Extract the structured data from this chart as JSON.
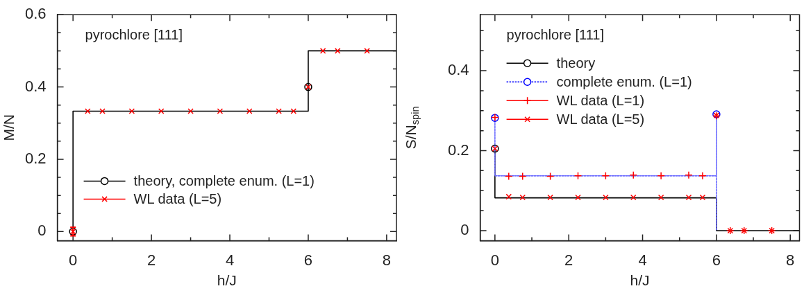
{
  "chart_data": [
    {
      "type": "line",
      "xlabel": "h/J",
      "ylabel": "M/N",
      "annotations": [
        "pyrochlore [111]"
      ],
      "legend": "bottom left",
      "xlim": [
        -0.4,
        8.25
      ],
      "ylim": [
        -0.025,
        0.6
      ],
      "xticks": [
        0,
        {
          "value": 1,
          "label": null
        },
        2,
        {
          "value": 3,
          "label": null
        },
        4,
        {
          "value": 5,
          "label": null
        },
        6,
        {
          "value": 7,
          "label": null
        },
        8
      ],
      "yticks": [
        0,
        {
          "value": 0.05,
          "label": null
        },
        {
          "value": 0.1,
          "label": null
        },
        {
          "value": 0.15,
          "label": null
        },
        0.2,
        {
          "value": 0.25,
          "label": null
        },
        {
          "value": 0.3,
          "label": null
        },
        {
          "value": 0.35,
          "label": null
        },
        0.4,
        {
          "value": 0.45,
          "label": null
        },
        {
          "value": 0.5,
          "label": null
        },
        {
          "value": 0.55,
          "label": null
        },
        0.6
      ],
      "series": [
        {
          "type": "line",
          "color": "#000000",
          "line_style": "solid",
          "x": [
            0,
            0,
            6,
            6,
            8.25
          ],
          "values": [
            0,
            0.333,
            0.333,
            0.5,
            0.5
          ]
        },
        {
          "type": "scatter",
          "name": "theory, complete enum. (L=1)",
          "color": "#000000",
          "marker": "circle",
          "line_style": "solid",
          "x": [
            0,
            6
          ],
          "values": [
            0,
            0.4
          ]
        },
        {
          "type": "scatter",
          "name": "WL data (L=5)",
          "color": "#ff0000",
          "marker": "cross",
          "line_style": "solid",
          "x": [
            0,
            0.375,
            0.75,
            1.5,
            2.25,
            3,
            3.75,
            4.5,
            5.25,
            5.625,
            6,
            6.375,
            6.75,
            7.5
          ],
          "values": [
            0,
            0.333,
            0.333,
            0.333,
            0.333,
            0.333,
            0.333,
            0.333,
            0.333,
            0.333,
            0.4,
            0.5,
            0.5,
            0.5
          ],
          "errors": [
            0.012,
            null,
            null,
            null,
            null,
            null,
            null,
            null,
            null,
            null,
            null,
            null,
            null,
            null
          ]
        }
      ]
    },
    {
      "type": "line",
      "xlabel": "h/J",
      "ylabel": "S/N$_{spin}$",
      "annotations": [
        "pyrochlore [111]"
      ],
      "legend": "top left",
      "xlim": [
        -0.4,
        8.25
      ],
      "ylim": [
        -0.025,
        0.54
      ],
      "xticks": [
        0,
        {
          "value": 1,
          "label": null
        },
        2,
        {
          "value": 3,
          "label": null
        },
        4,
        {
          "value": 5,
          "label": null
        },
        6,
        {
          "value": 7,
          "label": null
        },
        8
      ],
      "yticks": [
        0,
        {
          "value": 0.05,
          "label": null
        },
        {
          "value": 0.1,
          "label": null
        },
        {
          "value": 0.15,
          "label": null
        },
        0.2,
        {
          "value": 0.25,
          "label": null
        },
        {
          "value": 0.3,
          "label": null
        },
        {
          "value": 0.35,
          "label": null
        },
        0.4,
        {
          "value": 0.45,
          "label": null
        },
        {
          "value": 0.5,
          "label": null
        }
      ],
      "series": [
        {
          "type": "line",
          "color": "#000000",
          "line_style": "solid",
          "x": [
            0,
            0,
            6,
            6,
            8.25
          ],
          "values": [
            0.205,
            0.082,
            0.082,
            0,
            0
          ]
        },
        {
          "type": "line",
          "color": "#6b6bff",
          "line_style": "dotted",
          "x": [
            0,
            0,
            6,
            6,
            6
          ],
          "values": [
            0.282,
            0.137,
            0.137,
            0.291,
            0
          ]
        },
        {
          "type": "scatter",
          "name": "theory",
          "color": "#000000",
          "marker": "circle",
          "line_style": "solid",
          "x": [
            0
          ],
          "values": [
            0.205
          ]
        },
        {
          "type": "scatter",
          "name": "complete enum. (L=1)",
          "color": "#0000ff",
          "marker": "circle",
          "line_style": "dotted",
          "x": [
            0,
            6
          ],
          "values": [
            0.282,
            0.291
          ]
        },
        {
          "type": "scatter",
          "name": "WL data (L=1)",
          "color": "#ff0000",
          "marker": "plus",
          "line_style": "solid",
          "x": [
            0,
            0.375,
            0.75,
            1.5,
            2.25,
            3,
            3.75,
            4.5,
            5.25,
            5.625,
            6,
            6.375,
            6.75,
            7.5
          ],
          "values": [
            0.283,
            0.136,
            0.136,
            0.136,
            0.137,
            0.137,
            0.139,
            0.137,
            0.139,
            0.137,
            0.287,
            0,
            0,
            0
          ]
        },
        {
          "type": "scatter",
          "name": "WL data (L=5)",
          "color": "#ff0000",
          "marker": "cross",
          "line_style": "solid",
          "x": [
            0,
            0.375,
            0.75,
            1.5,
            2.25,
            3,
            3.75,
            4.5,
            5.25,
            5.625,
            6,
            6.375,
            6.75,
            7.5
          ],
          "values": [
            0.205,
            0.085,
            0.083,
            0.083,
            0.083,
            0.083,
            0.083,
            0.083,
            0.083,
            0.083,
            0.288,
            0,
            0,
            0
          ]
        }
      ]
    }
  ]
}
